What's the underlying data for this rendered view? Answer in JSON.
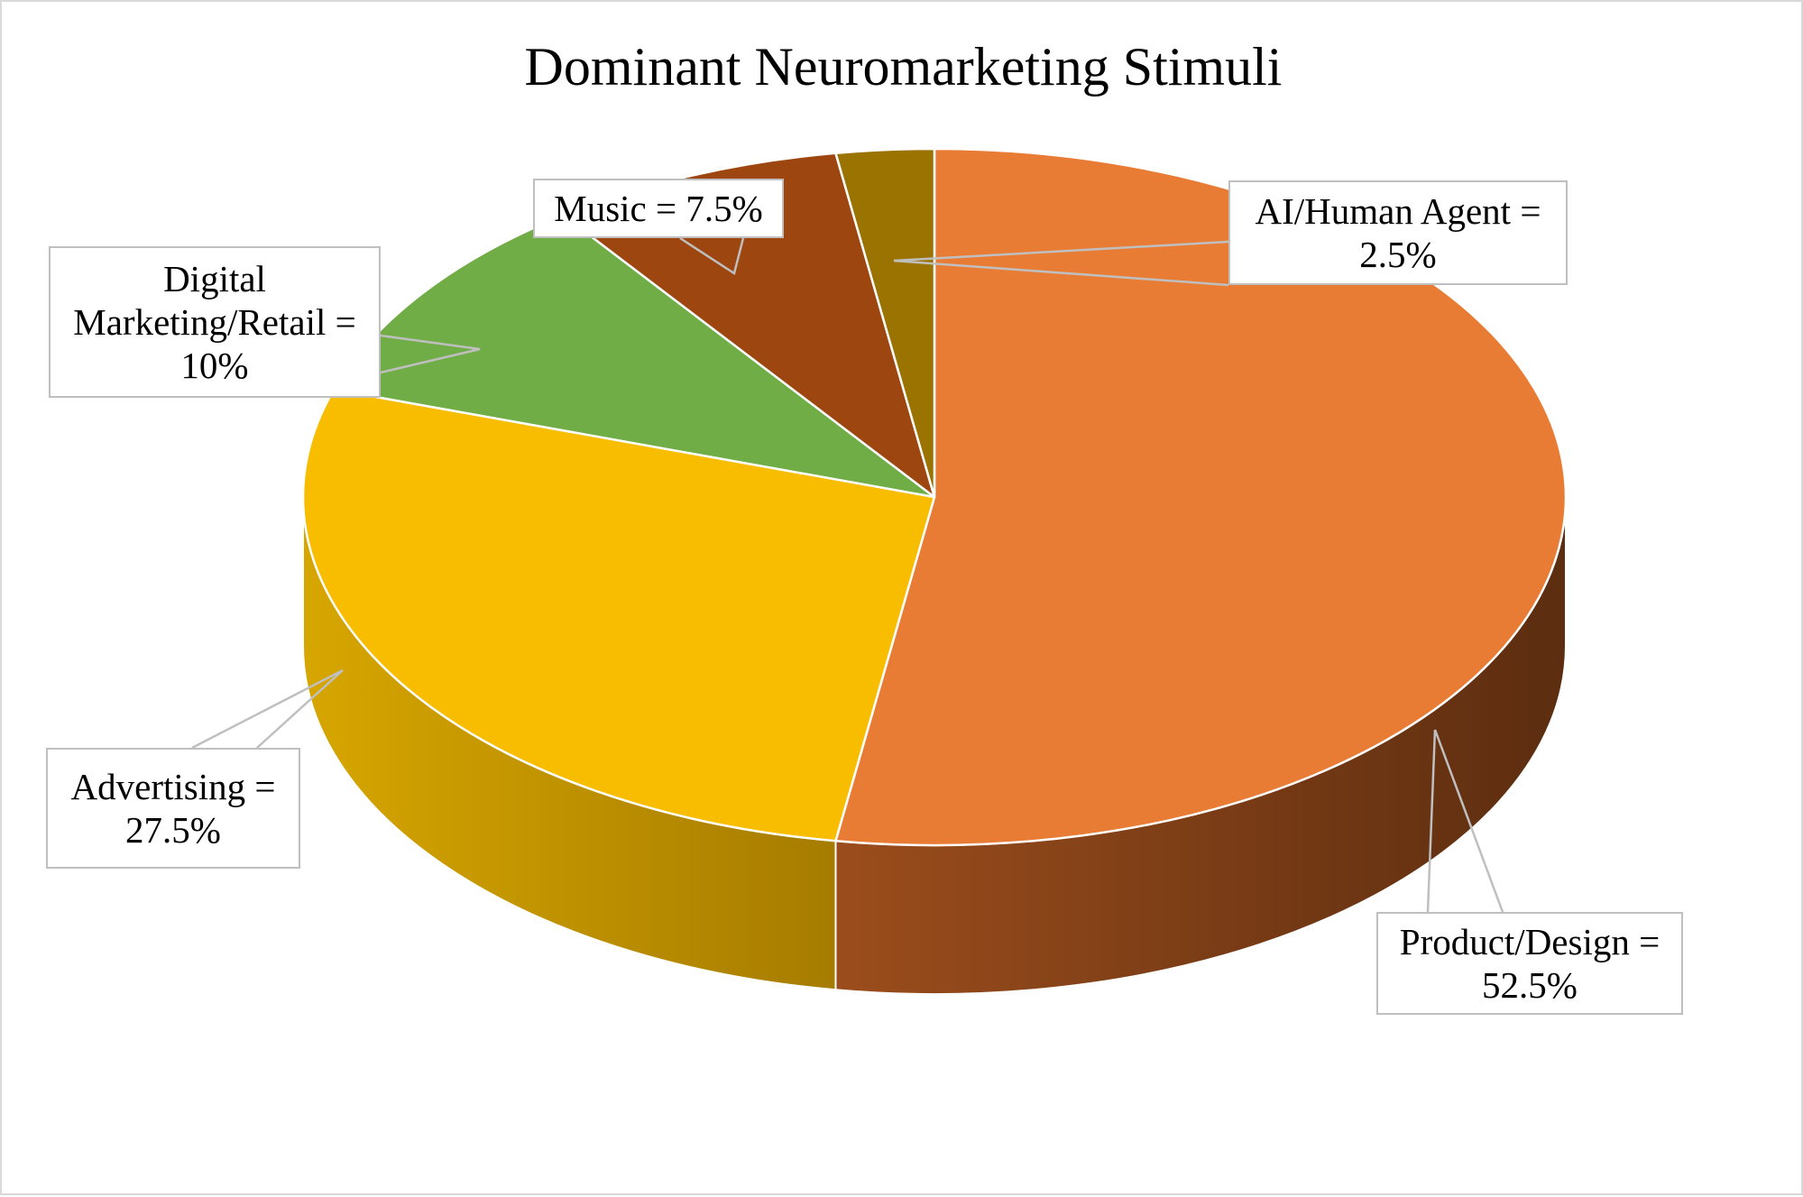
{
  "chart_data": {
    "type": "pie",
    "three_d": true,
    "title": "Dominant Neuromarketing Stimuli",
    "slices": [
      {
        "label": "Product/Design",
        "value": 52.5,
        "data_label": "Product/Design = 52.5%",
        "color": "#e97c35",
        "side_color": "#62310f"
      },
      {
        "label": "Advertising",
        "value": 27.5,
        "data_label": "Advertising = 27.5%",
        "color": "#f9bd00",
        "side_color": "#c99600"
      },
      {
        "label": "Digital Marketing/Retail",
        "value": 10,
        "data_label": "Digital Marketing/Retail = 10%",
        "color": "#70ad47",
        "side_color": "#4f7b31"
      },
      {
        "label": "Music",
        "value": 7.5,
        "data_label": "Music = 7.5%",
        "color": "#9e460f",
        "side_color": "#6e300a"
      },
      {
        "label": "AI/Human Agent",
        "value": 2.5,
        "data_label": "AI/Human Agent = 2.5%",
        "color": "#9a7300",
        "side_color": "#6b5000"
      }
    ],
    "legend": "none",
    "label_lines": {
      "product_design": [
        "Product/Design =",
        "52.5%"
      ],
      "advertising": [
        "Advertising =",
        "27.5%"
      ],
      "digital_marketing_retail": [
        "Digital",
        "Marketing/Retail =",
        "10%"
      ],
      "music": [
        "Music = 7.5%"
      ],
      "ai_human_agent": [
        "AI/Human Agent =",
        "2.5%"
      ]
    }
  },
  "colors": {
    "border": "#d9d9d9",
    "callout_border": "#bfbfbf",
    "leader_line": "#bfbfbf",
    "slice_edge": "#ffffff"
  }
}
